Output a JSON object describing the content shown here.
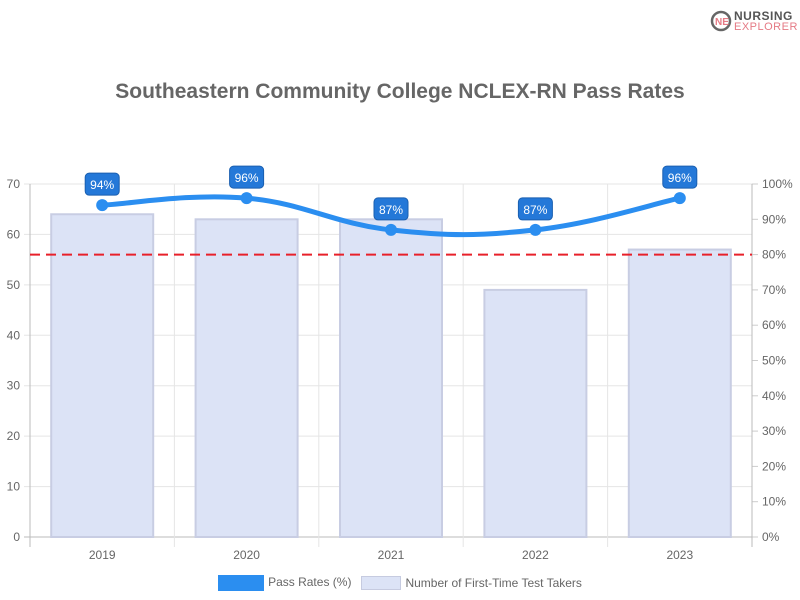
{
  "logo": {
    "line1": "NURSING",
    "line2": "EXPLORER"
  },
  "chart_data": {
    "type": "bar+line",
    "title": "Southeastern Community College NCLEX-RN Pass Rates",
    "categories": [
      "2019",
      "2020",
      "2021",
      "2022",
      "2023"
    ],
    "series": [
      {
        "name": "Pass Rates (%)",
        "type": "line",
        "axis": "right",
        "values": [
          94,
          96,
          87,
          87,
          96
        ],
        "labels": [
          "94%",
          "96%",
          "87%",
          "87%",
          "96%"
        ],
        "color": "#2b8ef0"
      },
      {
        "name": "Number of First-Time Test Takers",
        "type": "bar",
        "axis": "left",
        "values": [
          64,
          63,
          63,
          49,
          57
        ],
        "color": "#dce3f6"
      }
    ],
    "left_axis": {
      "ylim": [
        0,
        70
      ],
      "ticks": [
        "0",
        "10",
        "20",
        "30",
        "40",
        "50",
        "60",
        "70"
      ]
    },
    "right_axis": {
      "ylim": [
        0,
        100
      ],
      "ticks": [
        "0%",
        "10%",
        "20%",
        "30%",
        "40%",
        "50%",
        "60%",
        "70%",
        "80%",
        "90%",
        "100%"
      ]
    },
    "reference_line": {
      "value": 80,
      "axis": "right",
      "color": "#e8202a",
      "style": "dashed"
    },
    "grid": true,
    "legend": "bottom"
  }
}
